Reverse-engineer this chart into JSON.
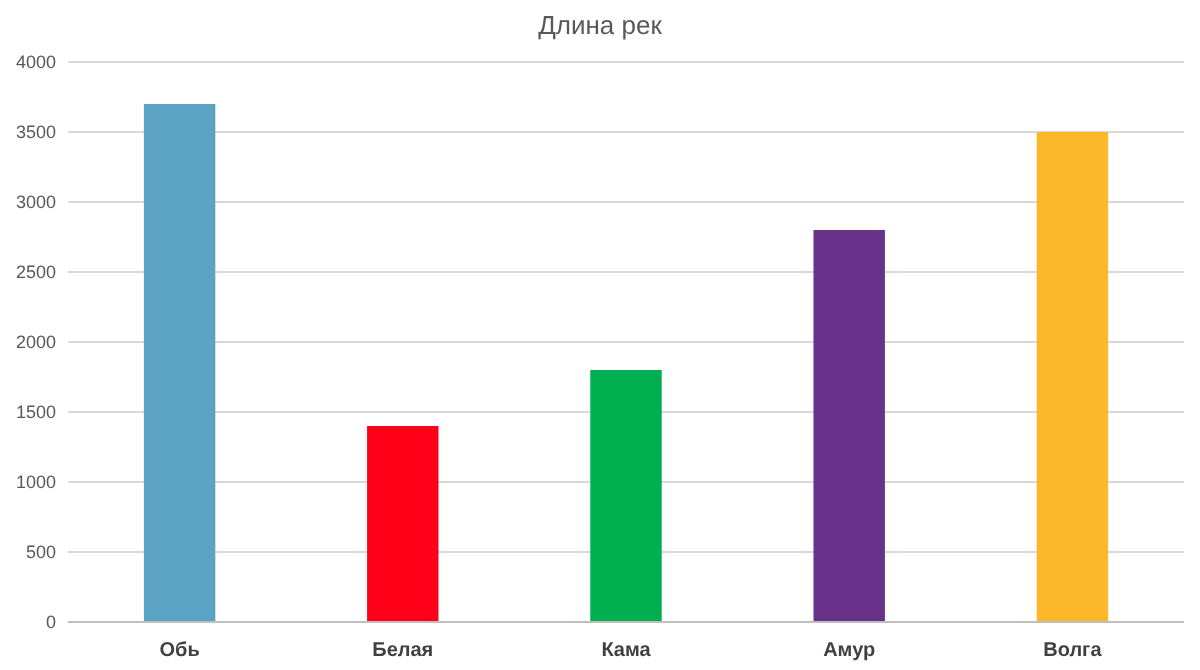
{
  "chart_data": {
    "type": "bar",
    "title": "Длина рек",
    "categories": [
      "Обь",
      "Белая",
      "Кама",
      "Амур",
      "Волга"
    ],
    "values": [
      3700,
      1400,
      1800,
      2800,
      3500
    ],
    "colors": [
      "#5ba3c4",
      "#ff0019",
      "#00b050",
      "#68328a",
      "#fbb829"
    ],
    "ylim": [
      0,
      4000
    ],
    "yticks": [
      0,
      500,
      1000,
      1500,
      2000,
      2500,
      3000,
      3500,
      4000
    ],
    "grid": "y"
  }
}
